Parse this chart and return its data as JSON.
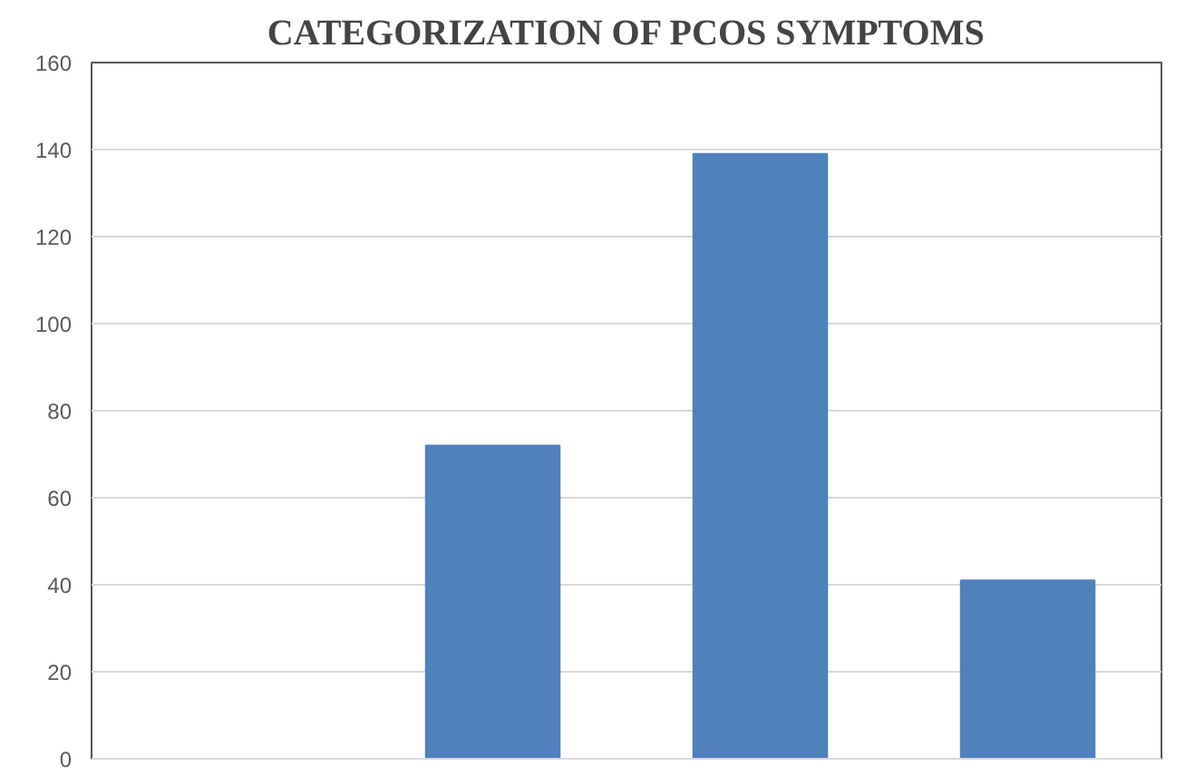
{
  "chart_data": {
    "type": "bar",
    "title": "CATEGORIZATION OF PCOS SYMPTOMS",
    "categories": [
      null,
      null,
      null,
      null
    ],
    "values": [
      null,
      72,
      139,
      41
    ],
    "color": "#4f81bd",
    "ylim": [
      0,
      160
    ],
    "yticks": [
      0,
      20,
      40,
      60,
      80,
      100,
      120,
      140,
      160
    ],
    "grid": "y",
    "tick_labels": "y"
  }
}
